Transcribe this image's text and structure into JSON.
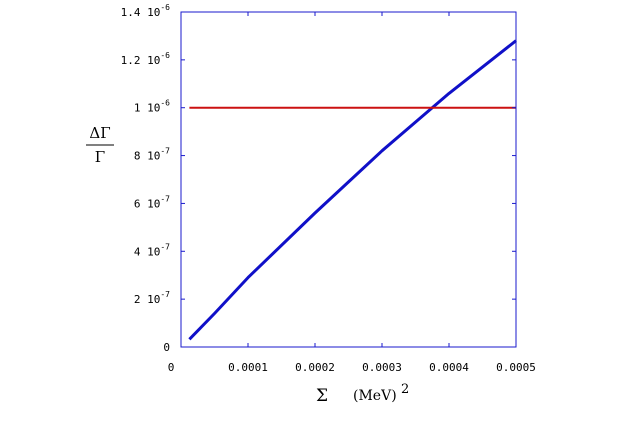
{
  "chart_data": {
    "type": "line",
    "xlabel": {
      "symbol": "Σ",
      "unit": "(MeV)",
      "exponent": "2"
    },
    "ylabel": {
      "numerator": "ΔΓ",
      "denominator": "Γ"
    },
    "xlim": [
      0,
      0.0005
    ],
    "ylim": [
      0,
      1.4e-06
    ],
    "x_ticks": [
      {
        "value": 0,
        "label": "0"
      },
      {
        "value": 0.0001,
        "label": "0.0001"
      },
      {
        "value": 0.0002,
        "label": "0.0002"
      },
      {
        "value": 0.0003,
        "label": "0.0003"
      },
      {
        "value": 0.0004,
        "label": "0.0004"
      },
      {
        "value": 0.0005,
        "label": "0.0005"
      }
    ],
    "y_ticks": [
      {
        "value": 0,
        "mantissa": "0",
        "exp": ""
      },
      {
        "value": 2e-07,
        "mantissa": "2",
        "exp": "-7"
      },
      {
        "value": 4e-07,
        "mantissa": "4",
        "exp": "-7"
      },
      {
        "value": 6e-07,
        "mantissa": "6",
        "exp": "-7"
      },
      {
        "value": 8e-07,
        "mantissa": "8",
        "exp": "-7"
      },
      {
        "value": 1e-06,
        "mantissa": "1",
        "exp": "-6"
      },
      {
        "value": 1.2e-06,
        "mantissa": "1.2",
        "exp": "-6"
      },
      {
        "value": 1.4e-06,
        "mantissa": "1.4",
        "exp": "-6"
      }
    ],
    "series": [
      {
        "color": "#1010c8",
        "x": [
          1.25e-05,
          5e-05,
          0.0001,
          0.0002,
          0.0003,
          0.0004,
          0.0005
        ],
        "y": [
          3.2e-08,
          1.4e-07,
          2.9e-07,
          5.6e-07,
          8.2e-07,
          1.06e-06,
          1.28e-06
        ]
      },
      {
        "color": "#cc1111",
        "x": [
          1.25e-05,
          0.0005
        ],
        "y": [
          1e-06,
          1e-06
        ]
      }
    ],
    "frame_color": "#1a1acc",
    "grid": false
  }
}
